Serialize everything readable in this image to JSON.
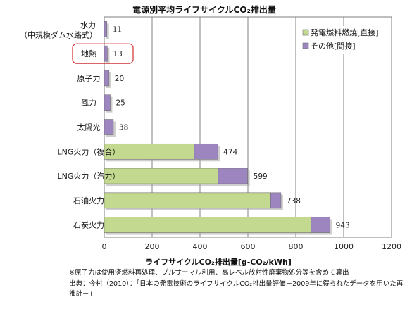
{
  "chart_data": {
    "type": "bar",
    "orientation": "horizontal",
    "stacked": true,
    "title": "電源別平均ライフサイクルCO₂排出量",
    "xlabel": "ライフサイクルCO₂排出量[g-CO₂/kWh]",
    "ylabel": "",
    "xlim": [
      0,
      1200
    ],
    "xticks": [
      0,
      200,
      400,
      600,
      800,
      1000,
      1200
    ],
    "grid": true,
    "legend_position": "top-right",
    "categories": [
      "水力\n（中規模ダム水路式）",
      "地熱",
      "原子力",
      "風力",
      "太陽光",
      "LNG火力（複合）",
      "LNG火力（汽力）",
      "石油火力",
      "石炭火力"
    ],
    "totals": [
      11,
      13,
      20,
      25,
      38,
      474,
      599,
      738,
      943
    ],
    "series": [
      {
        "name": "発電燃料燃焼[直接]",
        "color": "#c3d98f",
        "values": [
          0,
          0,
          0,
          0,
          0,
          376,
          476,
          695,
          864
        ]
      },
      {
        "name": "その他[間接]",
        "color": "#9d86c0",
        "values": [
          11,
          13,
          20,
          25,
          38,
          98,
          123,
          43,
          79
        ]
      }
    ],
    "highlighted_category": "地熱"
  },
  "notes": {
    "line1": "※原子力は使用済燃料再処理、プルサーマル利用、高レベル放射性廃棄物処分等を含めて算出",
    "line2": "出典：今村（2010）：「日本の発電技術のライフサイクルCO₂排出量評価－2009年に得られたデータを用いた再",
    "line3": "推計－」"
  },
  "colors": {
    "plot_background": "#ffffff",
    "gridline": "#808080",
    "highlight_box": "#d03030",
    "bar_shadow": "#a6a6a6"
  }
}
